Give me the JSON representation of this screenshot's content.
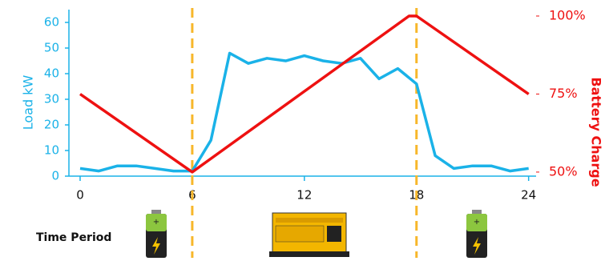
{
  "chart_data": {
    "type": "line",
    "x": [
      0,
      1,
      2,
      3,
      4,
      5,
      6,
      7,
      8,
      9,
      10,
      11,
      12,
      13,
      14,
      15,
      16,
      17,
      18,
      19,
      20,
      21,
      22,
      23,
      24
    ],
    "xlim": [
      -0.6,
      24.4
    ],
    "xticks": [
      0,
      6,
      12,
      18,
      24
    ],
    "ylim": [
      0,
      62.5
    ],
    "yticks": [
      0,
      10,
      20,
      30,
      40,
      50,
      60
    ],
    "y2lim": [
      48.7,
      100
    ],
    "y2ticks": [
      {
        "value": 50,
        "label": "50%"
      },
      {
        "value": 75,
        "label": "75%"
      },
      {
        "value": 100,
        "label": "100%"
      }
    ],
    "ylabel": "Load kW",
    "y2label": "Battery Charge",
    "xlabel": "Time Period",
    "series": [
      {
        "name": "Load",
        "color": "#1ab2e8",
        "values": [
          3,
          2,
          4,
          4,
          3,
          2,
          2,
          14,
          48,
          44,
          46,
          45,
          47,
          45,
          44,
          46,
          38,
          42,
          36,
          8,
          3,
          4,
          4,
          2,
          3
        ]
      },
      {
        "name": "Battery Charge",
        "color": "#ee1111",
        "axis": "y2",
        "x": [
          0,
          6,
          17.6,
          18,
          24
        ],
        "values": [
          75,
          50,
          100,
          100,
          75
        ]
      }
    ],
    "vlines": [
      6,
      18
    ],
    "vline_color": "#f7b72a"
  }
}
